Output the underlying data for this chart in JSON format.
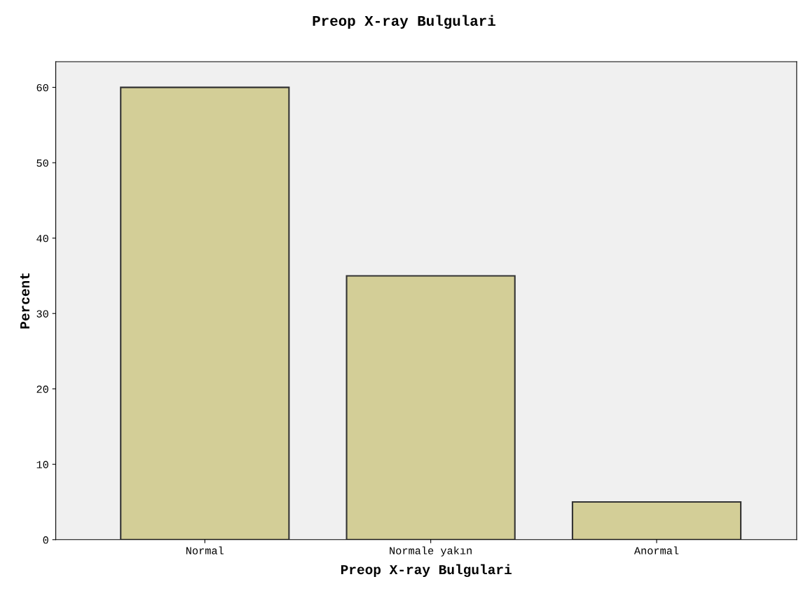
{
  "chart_data": {
    "type": "bar",
    "title": "Preop X-ray Bulgulari",
    "xlabel": "Preop X-ray Bulgulari",
    "ylabel": "Percent",
    "categories": [
      "Normal",
      "Normale yakın",
      "Anormal"
    ],
    "values": [
      60,
      35,
      5
    ],
    "color": "#d3ce97",
    "ylim": [
      0,
      63.4
    ],
    "yticks": [
      0,
      10,
      20,
      30,
      40,
      50,
      60
    ],
    "grid": false,
    "legend": false
  }
}
